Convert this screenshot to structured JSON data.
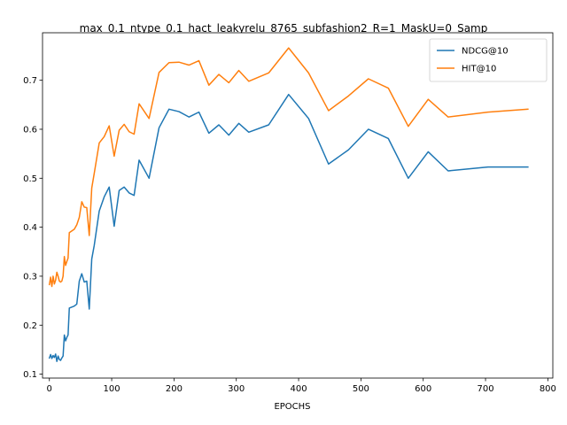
{
  "chart_data": {
    "type": "line",
    "title": "max_0.1_ntype_0.1_hact_leakyrelu_8765_subfashion2_R=1_MaskU=0_Samp",
    "xlabel": "EPOCHS",
    "ylabel": "",
    "xlim": [
      -11,
      808
    ],
    "ylim": [
      0.092,
      0.797
    ],
    "xticks": [
      0,
      100,
      200,
      300,
      400,
      500,
      600,
      700,
      800
    ],
    "yticks": [
      0.1,
      0.2,
      0.3,
      0.4,
      0.5,
      0.6,
      0.7
    ],
    "grid": false,
    "legend_position": "top-right",
    "series": [
      {
        "name": "NDCG@10",
        "color": "#1f77b4",
        "x": [
          0,
          2,
          4,
          6,
          8,
          10,
          12,
          14,
          16,
          18,
          20,
          22,
          24,
          26,
          28,
          30,
          32,
          40,
          44,
          48,
          52,
          56,
          60,
          64,
          68,
          72,
          80,
          88,
          96,
          104,
          112,
          120,
          128,
          136,
          144,
          160,
          176,
          192,
          208,
          224,
          240,
          256,
          272,
          288,
          304,
          320,
          352,
          384,
          416,
          448,
          480,
          512,
          544,
          576,
          608,
          640,
          704,
          768
        ],
        "y": [
          0.133,
          0.14,
          0.132,
          0.138,
          0.134,
          0.141,
          0.126,
          0.137,
          0.13,
          0.128,
          0.133,
          0.137,
          0.18,
          0.168,
          0.175,
          0.18,
          0.235,
          0.239,
          0.243,
          0.29,
          0.305,
          0.288,
          0.29,
          0.233,
          0.335,
          0.363,
          0.433,
          0.462,
          0.482,
          0.402,
          0.475,
          0.482,
          0.47,
          0.465,
          0.537,
          0.5,
          0.603,
          0.641,
          0.636,
          0.625,
          0.635,
          0.592,
          0.609,
          0.588,
          0.612,
          0.594,
          0.609,
          0.671,
          0.622,
          0.529,
          0.558,
          0.6,
          0.581,
          0.5,
          0.554,
          0.515,
          0.523,
          0.523
        ]
      },
      {
        "name": "HIT@10",
        "color": "#ff7f0e",
        "x": [
          0,
          2,
          4,
          6,
          8,
          10,
          12,
          14,
          16,
          18,
          20,
          22,
          24,
          26,
          28,
          30,
          32,
          40,
          44,
          48,
          52,
          56,
          60,
          64,
          68,
          72,
          80,
          88,
          96,
          104,
          112,
          120,
          128,
          136,
          144,
          160,
          176,
          192,
          208,
          224,
          240,
          256,
          272,
          288,
          304,
          320,
          352,
          384,
          416,
          448,
          480,
          512,
          544,
          576,
          608,
          640,
          704,
          768
        ],
        "y": [
          0.283,
          0.298,
          0.279,
          0.3,
          0.284,
          0.292,
          0.308,
          0.3,
          0.29,
          0.288,
          0.29,
          0.3,
          0.34,
          0.322,
          0.33,
          0.337,
          0.389,
          0.396,
          0.405,
          0.42,
          0.452,
          0.441,
          0.44,
          0.383,
          0.48,
          0.51,
          0.572,
          0.585,
          0.607,
          0.545,
          0.598,
          0.61,
          0.595,
          0.59,
          0.652,
          0.622,
          0.716,
          0.736,
          0.737,
          0.731,
          0.74,
          0.69,
          0.712,
          0.695,
          0.72,
          0.698,
          0.715,
          0.766,
          0.715,
          0.638,
          0.668,
          0.703,
          0.684,
          0.606,
          0.661,
          0.625,
          0.635,
          0.641
        ]
      }
    ]
  }
}
